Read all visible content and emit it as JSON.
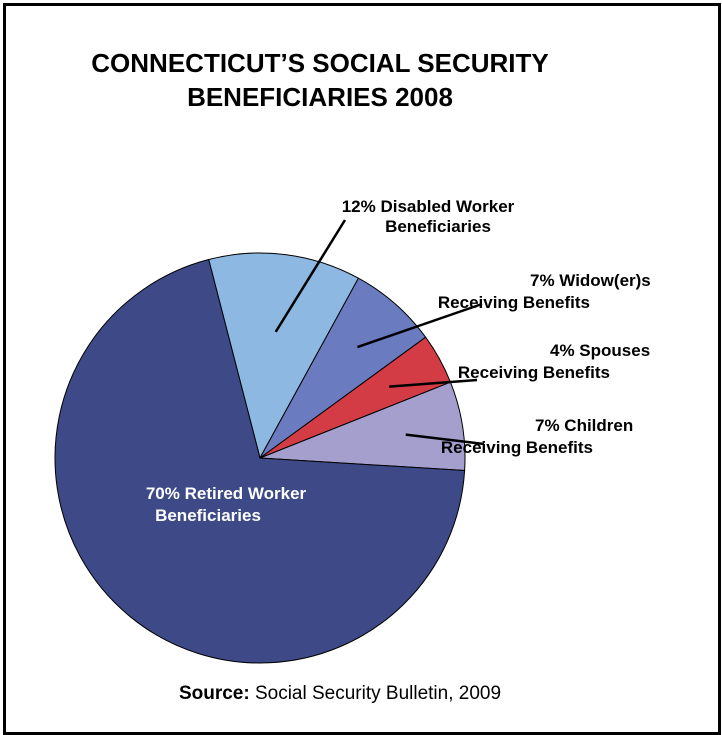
{
  "chart_data": {
    "type": "pie",
    "title_lines": [
      "CONNECTICUT’S SOCIAL SECURITY",
      "BENEFICIARIES 2008"
    ],
    "slices": [
      {
        "name": "Disabled Worker Beneficiaries",
        "value": 12,
        "color": "#8db8e1",
        "label_lines": [
          "12% Disabled Worker",
          "Beneficiaries"
        ]
      },
      {
        "name": "Widow(er)s Receiving Benefits",
        "value": 7,
        "color": "#6a7bbf",
        "label_lines": [
          "7% Widow(er)s",
          "Receiving Benefits"
        ]
      },
      {
        "name": "Spouses Receiving Benefits",
        "value": 4,
        "color": "#d43c45",
        "label_lines": [
          "4% Spouses",
          "Receiving Benefits"
        ]
      },
      {
        "name": "Children Receiving Benefits",
        "value": 7,
        "color": "#a59fce",
        "label_lines": [
          "7% Children",
          "Receiving Benefits"
        ]
      },
      {
        "name": "Retired Worker Beneficiaries",
        "value": 70,
        "color": "#3d4a87",
        "label_lines": [
          "70% Retired Worker",
          "Beneficiaries"
        ]
      }
    ],
    "source_label": "Source:",
    "source_text": " Social Security Bulletin, 2009"
  }
}
